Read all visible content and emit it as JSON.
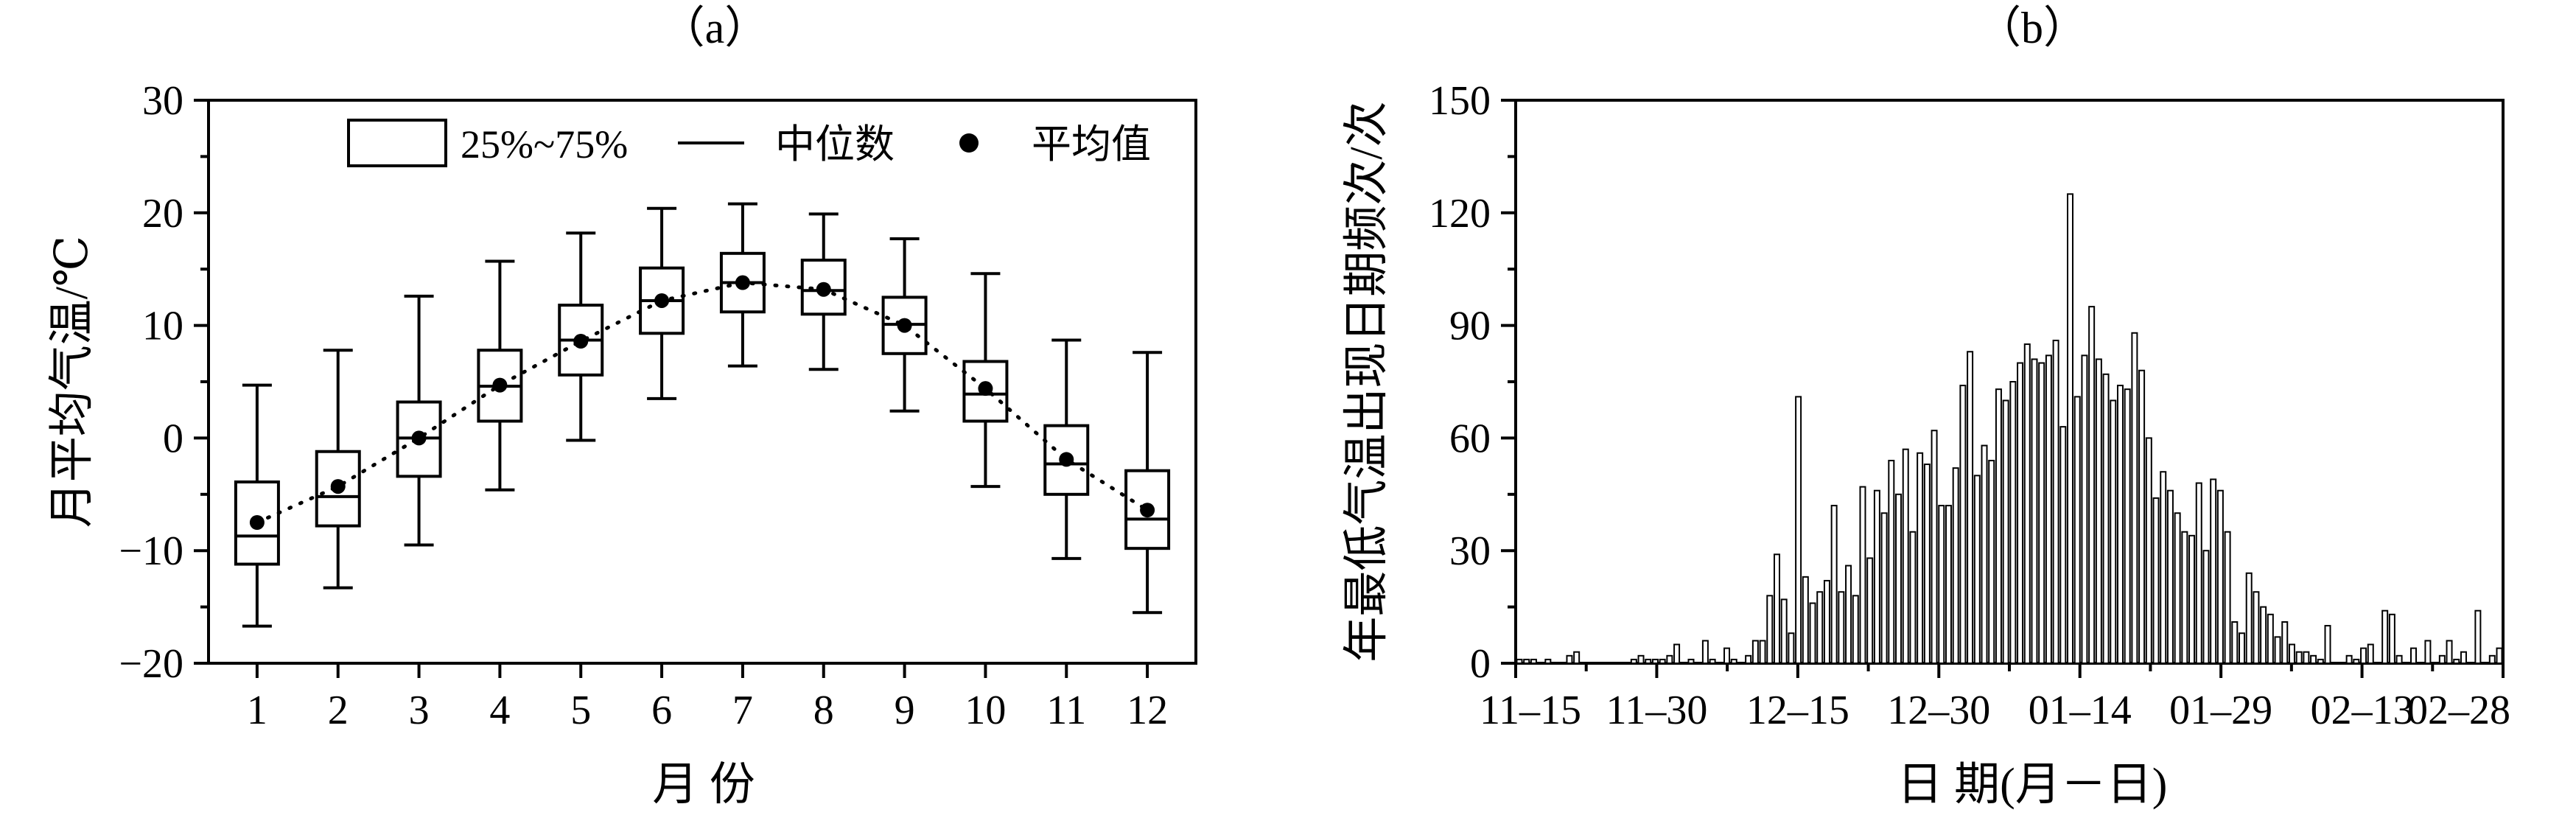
{
  "chart_data": [
    {
      "type": "box",
      "panel_label": "（a）",
      "xlabel": "月 份",
      "ylabel": "月平均气温/℃",
      "ylim": [
        -20,
        30
      ],
      "yticks": [
        "30",
        "20",
        "10",
        "0",
        "−10",
        "−20"
      ],
      "categories": [
        "1",
        "2",
        "3",
        "4",
        "5",
        "6",
        "7",
        "8",
        "9",
        "10",
        "11",
        "12"
      ],
      "whisker_low": [
        -16.7,
        -13.3,
        -9.5,
        -4.6,
        -0.2,
        3.5,
        6.4,
        6.1,
        2.4,
        -4.3,
        -10.7,
        -15.5
      ],
      "q1": [
        -11.2,
        -7.8,
        -3.4,
        1.5,
        5.6,
        9.3,
        11.2,
        11.0,
        7.5,
        1.5,
        -5.0,
        -9.8
      ],
      "median": [
        -8.7,
        -5.2,
        0.0,
        4.6,
        8.7,
        12.2,
        13.8,
        13.1,
        10.1,
        3.9,
        -2.3,
        -7.2
      ],
      "q3": [
        -3.9,
        -1.2,
        3.2,
        7.8,
        11.8,
        15.1,
        16.4,
        15.8,
        12.5,
        6.8,
        1.1,
        -2.9
      ],
      "whisker_high": [
        4.7,
        7.8,
        12.6,
        15.7,
        18.2,
        20.4,
        20.8,
        19.9,
        17.7,
        14.6,
        8.7,
        7.6
      ],
      "mean": [
        -7.5,
        -4.3,
        0.0,
        4.7,
        8.6,
        12.2,
        13.8,
        13.2,
        10.0,
        4.4,
        -1.9,
        -6.4
      ],
      "legend": {
        "box": "25%~75%",
        "median": "中位数",
        "mean": "平均值"
      }
    },
    {
      "type": "bar",
      "panel_label": "（b）",
      "xlabel": "日 期(月－日)",
      "ylabel": "年最低气温出现日期频次/次",
      "ylim": [
        0,
        150
      ],
      "yticks": [
        "150",
        "120",
        "90",
        "60",
        "30",
        "0"
      ],
      "xticks": [
        "11–15",
        "11–30",
        "12–15",
        "12–30",
        "01–14",
        "01–29",
        "02–13",
        "02–28"
      ],
      "values": [
        1,
        1,
        1,
        0,
        1,
        0,
        0,
        2,
        3,
        0,
        0,
        0,
        0,
        0,
        0,
        0,
        1,
        2,
        1,
        1,
        1,
        2,
        5,
        0,
        1,
        0,
        6,
        1,
        0,
        4,
        1,
        0,
        2,
        6,
        6,
        18,
        29,
        17,
        8,
        71,
        23,
        16,
        19,
        22,
        42,
        19,
        26,
        18,
        47,
        28,
        46,
        40,
        54,
        45,
        57,
        35,
        56,
        53,
        62,
        42,
        42,
        52,
        74,
        83,
        50,
        58,
        54,
        73,
        70,
        75,
        80,
        85,
        81,
        80,
        82,
        86,
        63,
        125,
        71,
        82,
        95,
        81,
        77,
        70,
        74,
        73,
        88,
        78,
        60,
        44,
        51,
        46,
        40,
        35,
        34,
        48,
        30,
        49,
        46,
        35,
        11,
        8,
        24,
        19,
        15,
        13,
        7,
        11,
        5,
        3,
        3,
        2,
        1,
        10,
        0,
        0,
        2,
        1,
        4,
        5,
        0,
        14,
        13,
        2,
        0,
        4,
        0,
        6,
        0,
        2,
        6,
        1,
        3,
        0,
        14,
        0,
        2,
        4
      ]
    }
  ]
}
